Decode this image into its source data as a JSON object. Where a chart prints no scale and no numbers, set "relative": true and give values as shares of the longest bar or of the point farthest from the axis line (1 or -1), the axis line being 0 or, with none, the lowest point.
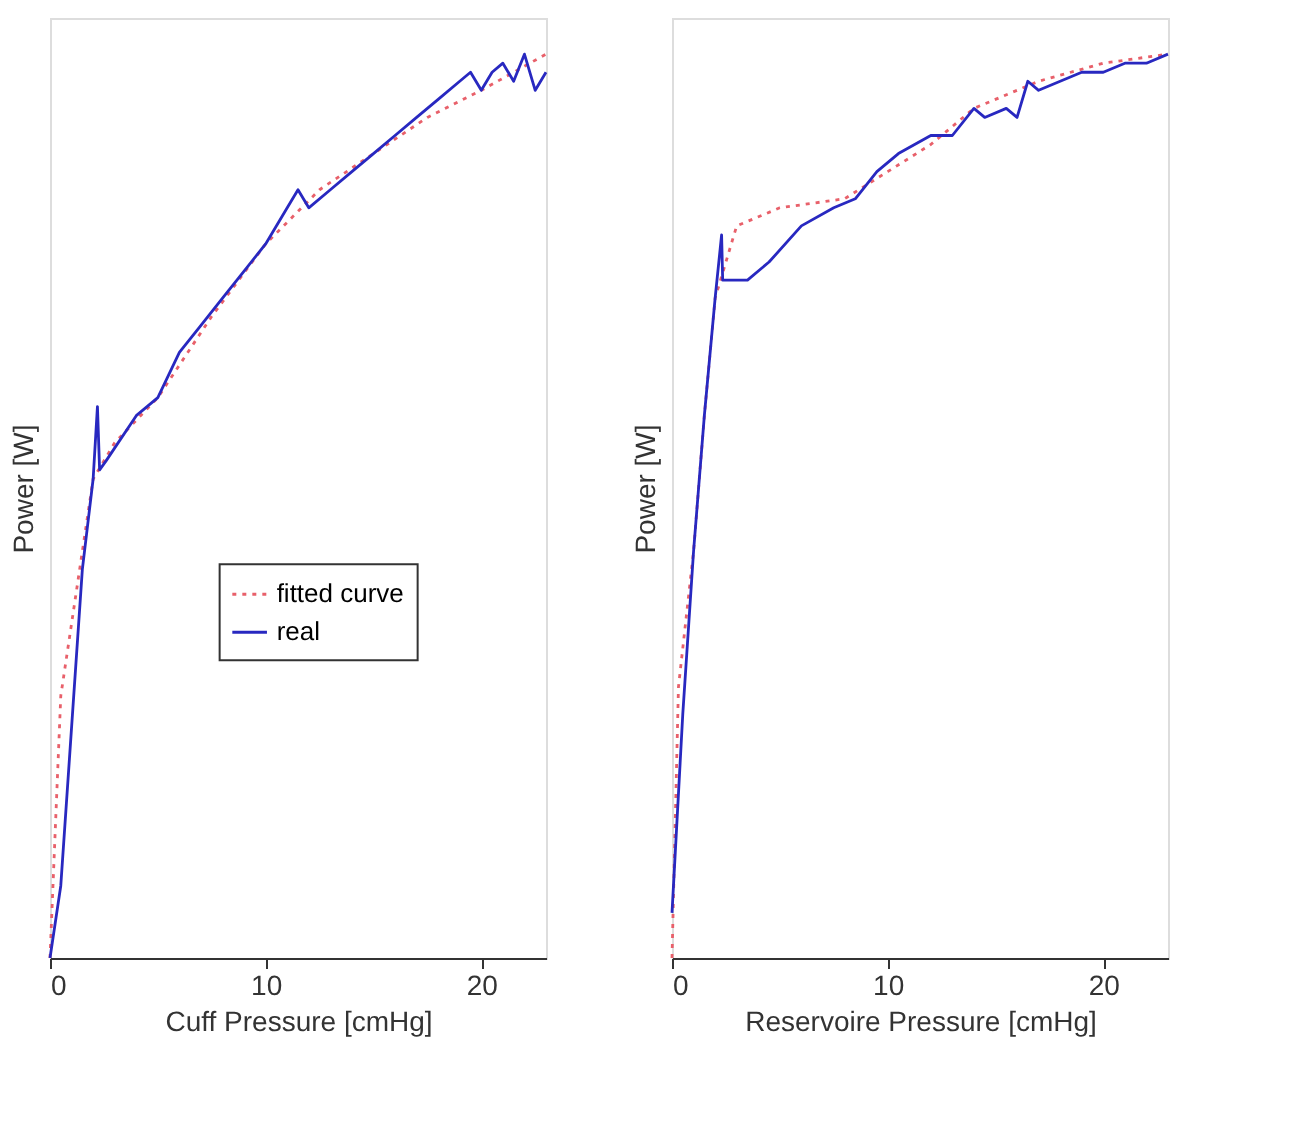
{
  "chart_data": [
    {
      "type": "line",
      "xlabel": "Cuff Pressure [cmHg]",
      "ylabel": "Power [W]",
      "relative": true,
      "xlim": [
        0,
        23
      ],
      "xticks": [
        0,
        10,
        20
      ],
      "grid": false,
      "legend": "right",
      "marker": "none",
      "series": [
        {
          "name": "fitted curve",
          "color": "#e8606a",
          "line_style": "dotted",
          "x": [
            0,
            0.5,
            1,
            2,
            3,
            5,
            7.5,
            10,
            12.5,
            15,
            17.5,
            20,
            23
          ],
          "values": [
            0,
            0.29,
            0.37,
            0.53,
            0.57,
            0.62,
            0.71,
            0.79,
            0.85,
            0.89,
            0.93,
            0.96,
            1.0
          ]
        },
        {
          "name": "real",
          "color": "#2828c0",
          "line_style": "solid",
          "x": [
            0,
            0.5,
            1.5,
            2,
            2.2,
            2.3,
            2.6,
            4,
            5,
            6,
            7,
            8,
            9,
            10,
            11,
            11.5,
            12,
            13,
            14,
            15,
            16,
            17,
            18,
            19,
            19.5,
            20,
            20.5,
            21,
            21.5,
            22,
            22.5,
            23
          ],
          "values": [
            0,
            0.08,
            0.43,
            0.53,
            0.61,
            0.54,
            0.55,
            0.6,
            0.62,
            0.67,
            0.7,
            0.73,
            0.76,
            0.79,
            0.83,
            0.85,
            0.83,
            0.85,
            0.87,
            0.89,
            0.91,
            0.93,
            0.95,
            0.97,
            0.98,
            0.96,
            0.98,
            0.99,
            0.97,
            1.0,
            0.96,
            0.98
          ]
        }
      ]
    },
    {
      "type": "line",
      "xlabel": "Reservoire Pressure [cmHg]",
      "ylabel": "Power [W]",
      "relative": true,
      "xlim": [
        0,
        23
      ],
      "xticks": [
        0,
        10,
        20
      ],
      "grid": false,
      "legend": "right",
      "marker": "none",
      "series": [
        {
          "name": "fitted curve",
          "color": "#e8606a",
          "line_style": "dotted",
          "x": [
            0,
            0.3,
            1,
            1.5,
            2,
            3,
            5,
            8,
            10,
            12,
            14,
            17,
            20,
            23
          ],
          "values": [
            0,
            0.3,
            0.45,
            0.6,
            0.73,
            0.81,
            0.83,
            0.84,
            0.87,
            0.9,
            0.94,
            0.97,
            0.99,
            1.0
          ]
        },
        {
          "name": "real",
          "color": "#2828c0",
          "line_style": "solid",
          "x": [
            0,
            0.5,
            1,
            1.5,
            2,
            2.3,
            2.35,
            3,
            3.5,
            4.5,
            6,
            7.5,
            8.5,
            9.5,
            10.5,
            12,
            13,
            14,
            14.5,
            15.5,
            16,
            16.5,
            17,
            18,
            19,
            20,
            21,
            22,
            23
          ],
          "values": [
            0.05,
            0.27,
            0.45,
            0.6,
            0.73,
            0.8,
            0.75,
            0.75,
            0.75,
            0.77,
            0.81,
            0.83,
            0.84,
            0.87,
            0.89,
            0.91,
            0.91,
            0.94,
            0.93,
            0.94,
            0.93,
            0.97,
            0.96,
            0.97,
            0.98,
            0.98,
            0.99,
            0.99,
            1.0
          ]
        }
      ]
    }
  ]
}
